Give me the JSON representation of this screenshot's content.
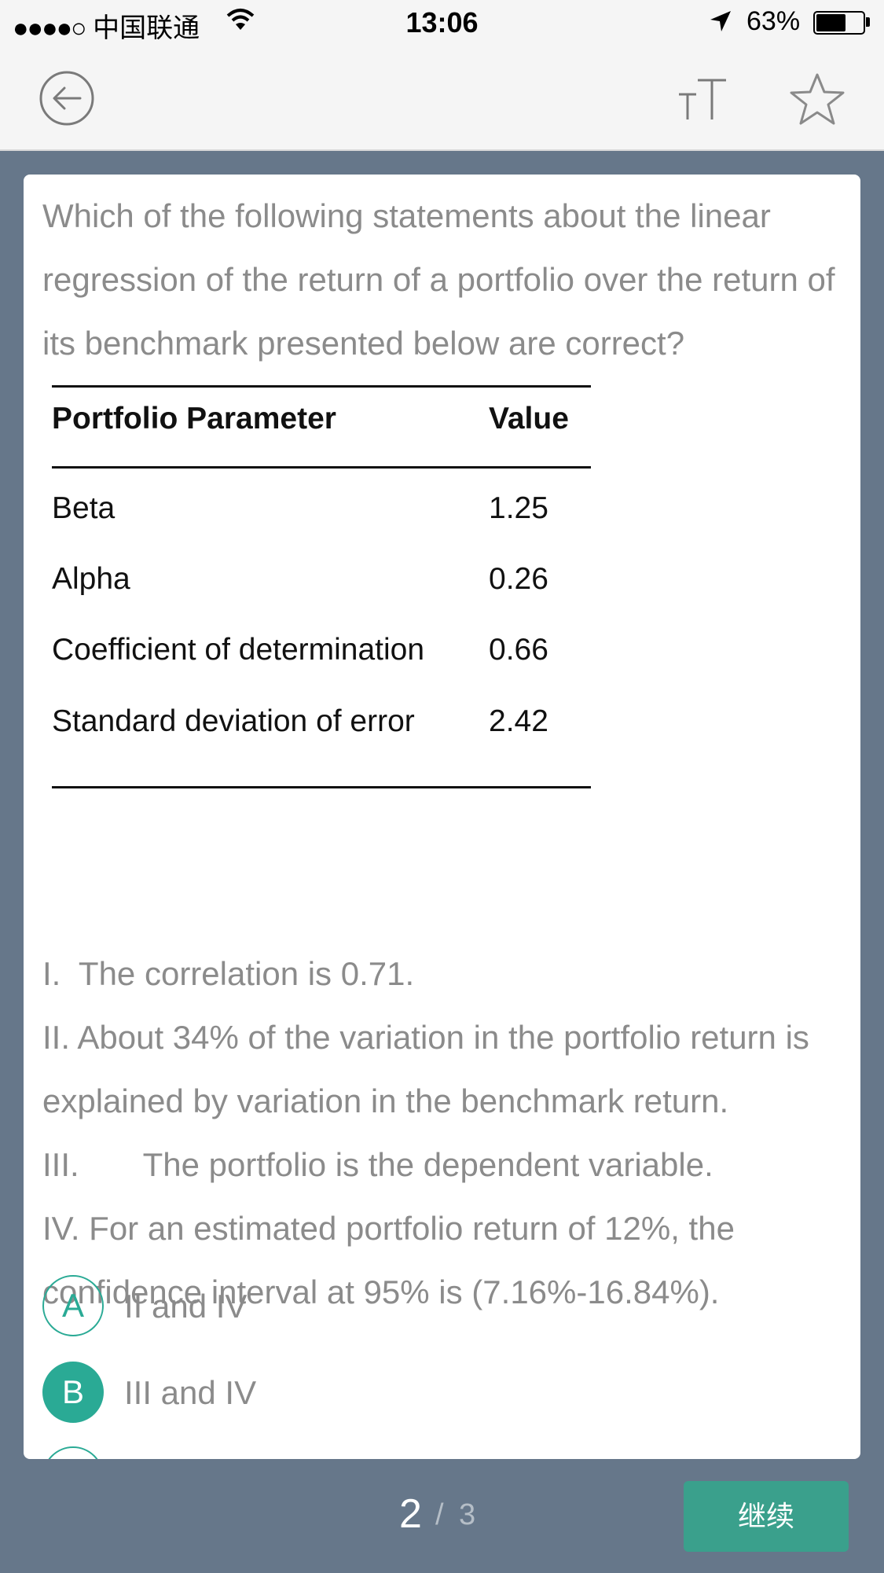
{
  "status_bar": {
    "carrier": "中国联通",
    "time": "13:06",
    "battery_percent": "63%",
    "battery_level": 0.63,
    "icons": [
      "signal-dots-icon",
      "wifi-icon",
      "location-arrow-icon",
      "battery-icon"
    ]
  },
  "nav": {
    "icons": [
      "back-arrow-icon",
      "font-size-icon",
      "star-icon"
    ]
  },
  "question": {
    "text": "Which of the following statements about the linear regression of the return of a portfolio over the return of its benchmark presented below are correct?",
    "table": {
      "headers": [
        "Portfolio Parameter",
        "Value"
      ],
      "rows": [
        [
          "Beta",
          "1.25"
        ],
        [
          "Alpha",
          "0.26"
        ],
        [
          "Coefficient of determination",
          "0.66"
        ],
        [
          "Standard deviation of error",
          "2.42"
        ]
      ]
    },
    "statements": [
      "I.  The correlation is 0.71.",
      "II. About 34% of the variation in the portfolio return is explained by variation in the benchmark return.",
      "III.       The portfolio is the dependent variable.",
      "IV. For an estimated portfolio return of 12%, the confidence interval at 95% is (7.16%-16.84%)."
    ]
  },
  "options": [
    {
      "letter": "A",
      "text": "II and IV",
      "selected": false
    },
    {
      "letter": "B",
      "text": "III and IV",
      "selected": true
    }
  ],
  "footer": {
    "current_page": "2",
    "separator": "/",
    "total_pages": "3",
    "continue_label": "继续"
  },
  "colors": {
    "accent": "#2aaa95",
    "button": "#3aa08c",
    "background": "#66778a"
  }
}
